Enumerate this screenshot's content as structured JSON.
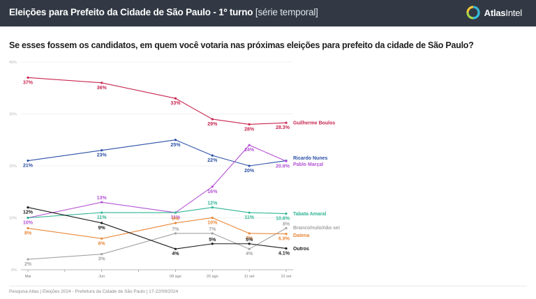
{
  "header": {
    "title": "Eleições para Prefeito da Cidade de São Paulo - 1º turno",
    "subtitle": "[série temporal]",
    "brand_bold": "Atlas",
    "brand_light": "Intel",
    "logo_icon": "atlasintel-logo-icon"
  },
  "question": "Se esses fossem os candidatos, em quem você votaria nas próximas eleições para prefeito da cidade de São Paulo?",
  "footer": "Pesquisa Atlas  |  Eleições 2024 - Prefeitura da Cidade de São Paulo  |  17-22/09/2024",
  "chart_data": {
    "type": "line",
    "title": "Se esses fossem os candidatos, em quem você votaria nas próximas eleições para prefeito da cidade de São Paulo?",
    "xlabel": "",
    "ylabel": "",
    "x": [
      "Mai",
      "Jun",
      "08 ago",
      "20 ago",
      "11 set",
      "22 set"
    ],
    "x_positions": [
      0,
      2,
      4,
      5,
      6,
      7
    ],
    "x_extra_ticks": [
      1,
      3
    ],
    "ylim": [
      0,
      40
    ],
    "yticks": [
      0,
      10,
      20,
      30,
      40
    ],
    "ytick_labels": [
      "0%",
      "10%",
      "20%",
      "30%",
      "40%"
    ],
    "grid": true,
    "legend": "right-end-labels",
    "series": [
      {
        "name": "Guilherme Boulos",
        "color": "#c8254f",
        "values": [
          37,
          36,
          33,
          29,
          28,
          28.3
        ],
        "labels": [
          "37%",
          "36%",
          "33%",
          "29%",
          "28%",
          "28.3%"
        ]
      },
      {
        "name": "Ricardo Nunes",
        "color": "#2a4fa5",
        "values": [
          21,
          23,
          25,
          22,
          20,
          21
        ],
        "labels": [
          "21%",
          "23%",
          "25%",
          "22%",
          "20%",
          ""
        ]
      },
      {
        "name": "Pablo Marçal",
        "color": "#b452d4",
        "values": [
          10,
          13,
          11,
          16,
          24,
          20.9
        ],
        "labels": [
          "10%",
          "13%",
          "11%",
          "16%",
          "24%",
          "20.9%"
        ]
      },
      {
        "name": "Tabata Amaral",
        "color": "#2fb595",
        "values": [
          10,
          11,
          11,
          12,
          11,
          10.8
        ],
        "labels": [
          "",
          "11%",
          "",
          "12%",
          "11%",
          "10.8%"
        ]
      },
      {
        "name": "Branco/nulo/não sei",
        "color": "#a3a3a3",
        "values": [
          2,
          3,
          7,
          7,
          4,
          8
        ],
        "labels": [
          "2%",
          "3%",
          "7%",
          "7%",
          "4%",
          "8%"
        ]
      },
      {
        "name": "Datena",
        "color": "#e8883a",
        "values": [
          8,
          6,
          9,
          10,
          7,
          6.9
        ],
        "labels": [
          "8%",
          "6%",
          "9%",
          "10%",
          "7%",
          "6.9%"
        ]
      },
      {
        "name": "Outros",
        "color": "#1a1a1a",
        "values": [
          12,
          9,
          4,
          5,
          5,
          4.1
        ],
        "labels": [
          "12%",
          "9%",
          "4%",
          "5%",
          "5%",
          "4.1%"
        ]
      }
    ]
  }
}
